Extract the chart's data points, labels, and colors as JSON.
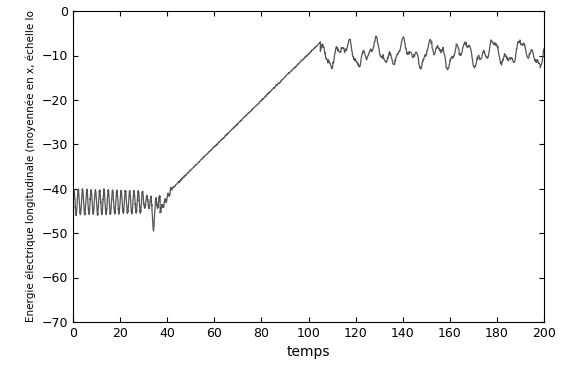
{
  "xlabel": "temps",
  "ylabel": "Energie électrique longitudinale (moyennée en x, échelle lo",
  "xlim": [
    0,
    200
  ],
  "ylim": [
    -70,
    0
  ],
  "xticks": [
    0,
    20,
    40,
    60,
    80,
    100,
    120,
    140,
    160,
    180,
    200
  ],
  "yticks": [
    0,
    -10,
    -20,
    -30,
    -40,
    -50,
    -60,
    -70
  ],
  "line_color": "#555555",
  "line_width": 0.9,
  "figsize": [
    5.61,
    3.7
  ],
  "dpi": 100
}
